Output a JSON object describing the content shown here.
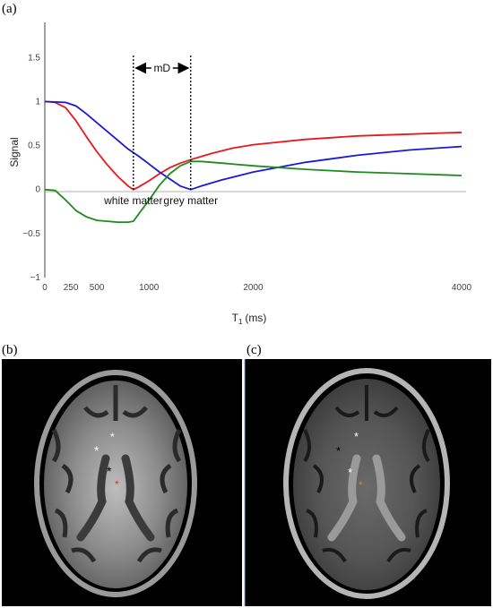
{
  "panels": {
    "a": {
      "label": "(a)"
    },
    "b": {
      "label": "(b)"
    },
    "c": {
      "label": "(c)"
    }
  },
  "chart_data": {
    "type": "line",
    "title": "",
    "xlabel": "T",
    "xlabel_sub": "1",
    "xlabel_units": "(ms)",
    "ylabel": "Signal",
    "xlim": [
      0,
      4000
    ],
    "ylim": [
      -1,
      1.9
    ],
    "x_ticks": [
      0,
      250,
      500,
      1000,
      2000,
      4000
    ],
    "y_ticks": [
      -1,
      -0.5,
      0,
      0.5,
      1,
      1.5
    ],
    "x_tick_labels": [
      "0",
      "250",
      "500",
      "1000",
      "2000",
      "4000"
    ],
    "y_tick_labels": [
      "−1",
      "−0.5",
      "0",
      "0.5",
      "1",
      "1.5"
    ],
    "grid": false,
    "series": [
      {
        "color": "#e8191d",
        "x": [
          0,
          100,
          200,
          300,
          400,
          500,
          600,
          700,
          800,
          850,
          900,
          1000,
          1100,
          1200,
          1300,
          1400,
          1600,
          1800,
          2000,
          2500,
          3000,
          3500,
          4000
        ],
        "y": [
          1.0,
          0.99,
          0.93,
          0.78,
          0.6,
          0.43,
          0.28,
          0.15,
          0.04,
          0.0,
          0.03,
          0.1,
          0.18,
          0.25,
          0.3,
          0.34,
          0.41,
          0.47,
          0.51,
          0.57,
          0.61,
          0.63,
          0.65
        ]
      },
      {
        "color": "#1a1ad6",
        "x": [
          0,
          200,
          300,
          400,
          500,
          600,
          700,
          800,
          900,
          1000,
          1100,
          1200,
          1300,
          1400,
          1500,
          1700,
          2000,
          2500,
          3000,
          3500,
          4000
        ],
        "y": [
          1.0,
          0.99,
          0.95,
          0.86,
          0.76,
          0.66,
          0.56,
          0.46,
          0.38,
          0.29,
          0.2,
          0.12,
          0.04,
          0.0,
          0.04,
          0.11,
          0.2,
          0.31,
          0.39,
          0.45,
          0.49
        ]
      },
      {
        "color": "#1f8a1f",
        "x": [
          0,
          100,
          200,
          300,
          400,
          500,
          600,
          700,
          800,
          850,
          900,
          1000,
          1100,
          1200,
          1300,
          1400,
          1500,
          1700,
          2000,
          2500,
          3000,
          3500,
          4000
        ],
        "y": [
          0.0,
          -0.01,
          -0.12,
          -0.24,
          -0.31,
          -0.35,
          -0.36,
          -0.37,
          -0.37,
          -0.36,
          -0.28,
          -0.12,
          0.05,
          0.18,
          0.27,
          0.32,
          0.32,
          0.3,
          0.27,
          0.23,
          0.2,
          0.18,
          0.16
        ]
      }
    ],
    "annotations": {
      "white_matter_label": "white matter",
      "grey_matter_label": "grey matter",
      "mD_label": "mD",
      "white_matter_x": 850,
      "grey_matter_x": 1400
    }
  },
  "brain_b": {
    "marker_white": "*",
    "marker_black": "*",
    "marker_red": "*"
  },
  "brain_c": {
    "marker_white": "*",
    "marker_black": "*",
    "marker_orange": "*"
  }
}
